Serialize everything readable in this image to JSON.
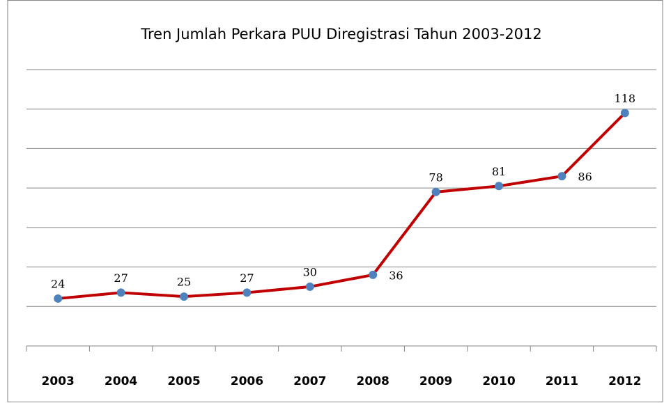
{
  "chart_data": {
    "type": "line",
    "title": "Tren Jumlah Perkara PUU Diregistrasi Tahun 2003-2012",
    "categories": [
      "2003",
      "2004",
      "2005",
      "2006",
      "2007",
      "2008",
      "2009",
      "2010",
      "2011",
      "2012"
    ],
    "values": [
      24,
      27,
      25,
      27,
      30,
      36,
      78,
      81,
      86,
      118
    ],
    "color": "#c00000",
    "marker_color": "#4f81bd",
    "ylim": [
      0,
      140
    ],
    "yticks": [
      0,
      20,
      40,
      60,
      80,
      100,
      120,
      140
    ],
    "grid": true
  }
}
